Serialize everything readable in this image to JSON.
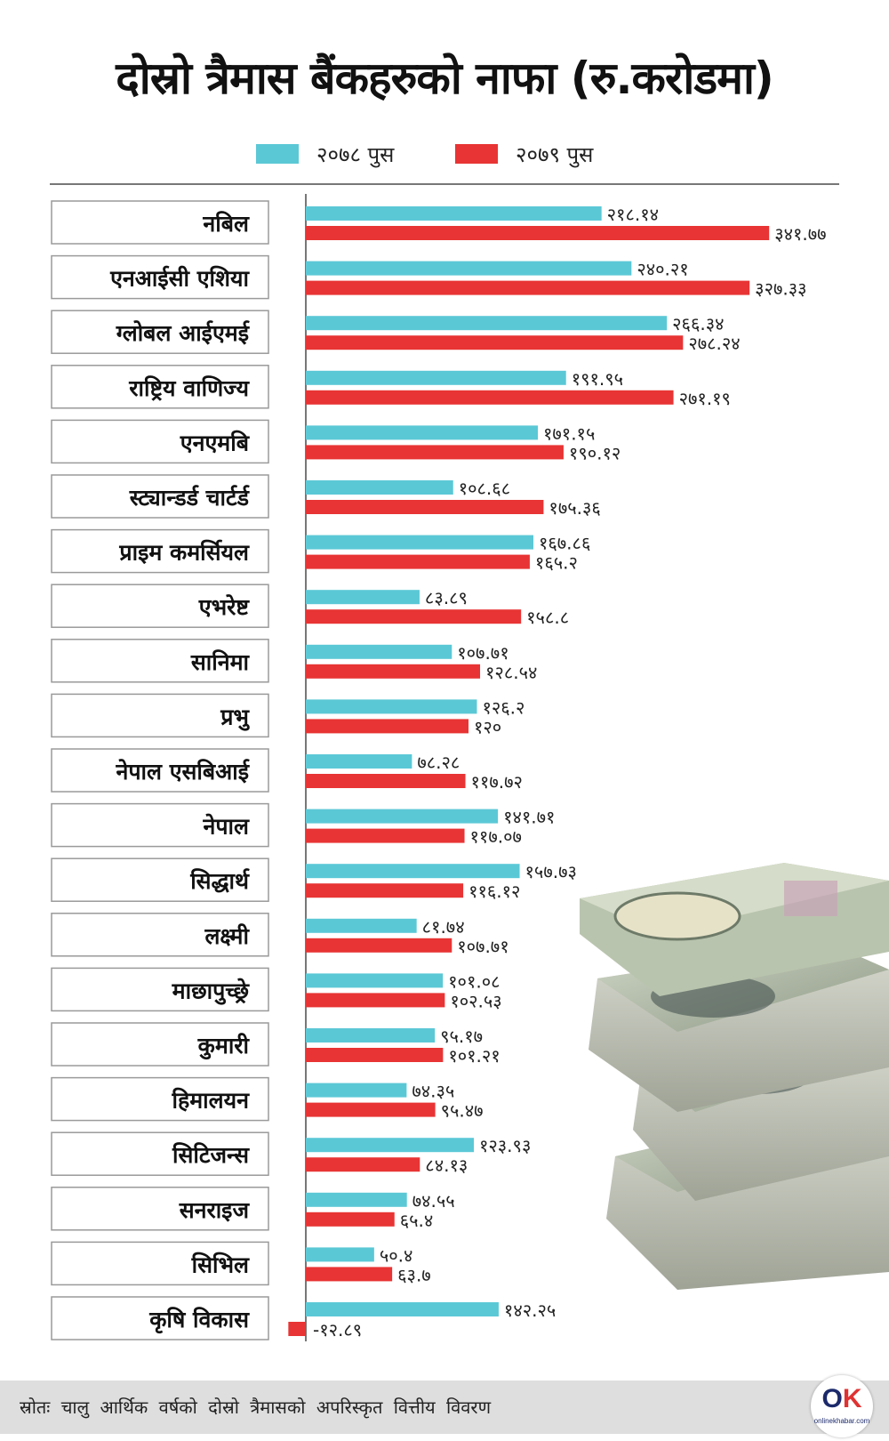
{
  "title": "दोस्रो त्रैमास बैंकहरुको नाफा (रु.करोडमा)",
  "legend": [
    {
      "label": "२०७८  पुस",
      "color": "#5bc8d6"
    },
    {
      "label": "२०७९  पुस",
      "color": "#e83434"
    }
  ],
  "colors": {
    "series1": "#5bc8d6",
    "series2": "#e83434"
  },
  "source": "स्रोतः चालु आर्थिक वर्षको दोस्रो त्रैमासको अपरिस्कृत वित्तीय विवरण",
  "logo": {
    "text_main": "OK",
    "text_sub": "onlinekhabar.com"
  },
  "chart_data": {
    "type": "bar",
    "orientation": "horizontal",
    "title": "दोस्रो त्रैमास बैंकहरुको नाफा (रु.करोडमा)",
    "categories": [
      "नबिल",
      "एनआईसी एशिया",
      "ग्लोबल आईएमई",
      "राष्ट्रिय वाणिज्य",
      "एनएमबि",
      "स्ट्यान्डर्ड चार्टर्ड",
      "प्राइम कमर्सियल",
      "एभरेष्ट",
      "सानिमा",
      "प्रभु",
      "नेपाल एसबिआई",
      "नेपाल",
      "सिद्धार्थ",
      "लक्ष्मी",
      "माछापुच्छ्रे",
      "कुमारी",
      "हिमालयन",
      "सिटिजन्स",
      "सनराइज",
      "सिभिल",
      "कृषि विकास"
    ],
    "series": [
      {
        "name": "२०७८  पुस",
        "color": "#5bc8d6",
        "values": [
          218.14,
          240.21,
          266.34,
          191.95,
          171.15,
          108.68,
          167.86,
          83.89,
          107.71,
          126.2,
          78.28,
          141.71,
          157.73,
          81.74,
          101.08,
          95.17,
          74.35,
          123.93,
          74.55,
          50.4,
          142.25
        ],
        "labels": [
          "२१८.१४",
          "२४०.२१",
          "२६६.३४",
          "१९१.९५",
          "१७१.१५",
          "१०८.६८",
          "१६७.८६",
          "८३.८९",
          "१०७.७१",
          "१२६.२",
          "७८.२८",
          "१४१.७१",
          "१५७.७३",
          "८१.७४",
          "१०१.०८",
          "९५.१७",
          "७४.३५",
          "१२३.९३",
          "७४.५५",
          "५०.४",
          "१४२.२५"
        ]
      },
      {
        "name": "२०७९  पुस",
        "color": "#e83434",
        "values": [
          341.77,
          327.33,
          278.24,
          271.19,
          190.12,
          175.36,
          165.2,
          158.8,
          128.54,
          120,
          117.72,
          117.07,
          116.12,
          107.71,
          102.53,
          101.21,
          95.47,
          84.13,
          65.4,
          63.7,
          -12.89
        ],
        "labels": [
          "३४१.७७",
          "३२७.३३",
          "२७८.२४",
          "२७१.१९",
          "१९०.१२",
          "१७५.३६",
          "१६५.२",
          "१५८.८",
          "१२८.५४",
          "१२०",
          "११७.७२",
          "११७.०७",
          "११६.१२",
          "१०७.७१",
          "१०२.५३",
          "१०१.२१",
          "९५.४७",
          "८४.१३",
          "६५.४",
          "६३.७",
          "-१२.८९"
        ]
      }
    ],
    "xlim": [
      -12.89,
      341.77
    ],
    "grid": false,
    "legend_position": "top-center"
  }
}
